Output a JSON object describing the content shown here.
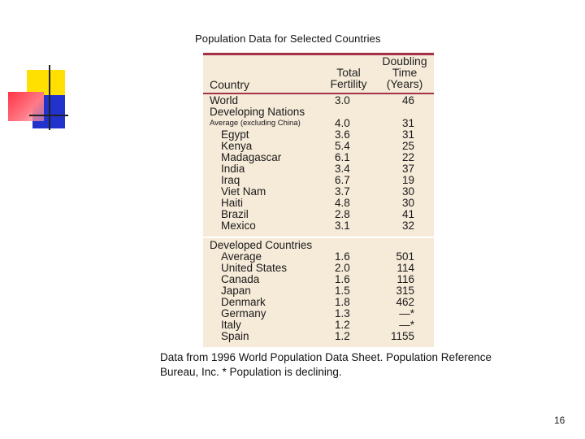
{
  "title": "Population Data for Selected Countries",
  "headers": {
    "country": "Country",
    "fertility": [
      "Total",
      "Fertility"
    ],
    "doubling": [
      "Doubling",
      "Time",
      "(Years)"
    ]
  },
  "rows": [
    {
      "name": "World",
      "fertility": "3.0",
      "doubling": "46",
      "indent": 0
    },
    {
      "name": "Developing Nations",
      "fertility": "",
      "doubling": "",
      "indent": 0
    },
    {
      "name": "Average  (excluding China)",
      "fertility": "4.0",
      "doubling": "31",
      "indent": 0,
      "note": true
    },
    {
      "name": "Egypt",
      "fertility": "3.6",
      "doubling": "31",
      "indent": 1
    },
    {
      "name": "Kenya",
      "fertility": "5.4",
      "doubling": "25",
      "indent": 1
    },
    {
      "name": "Madagascar",
      "fertility": "6.1",
      "doubling": "22",
      "indent": 1
    },
    {
      "name": "India",
      "fertility": "3.4",
      "doubling": "37",
      "indent": 1
    },
    {
      "name": "Iraq",
      "fertility": "6.7",
      "doubling": "19",
      "indent": 1
    },
    {
      "name": "Viet Nam",
      "fertility": "3.7",
      "doubling": "30",
      "indent": 1
    },
    {
      "name": "Haiti",
      "fertility": "4.8",
      "doubling": "30",
      "indent": 1
    },
    {
      "name": "Brazil",
      "fertility": "2.8",
      "doubling": "41",
      "indent": 1
    },
    {
      "name": "Mexico",
      "fertility": "3.1",
      "doubling": "32",
      "indent": 1
    },
    {
      "name": "Developed Countries",
      "fertility": "",
      "doubling": "",
      "indent": 0
    },
    {
      "name": "Average",
      "fertility": "1.6",
      "doubling": "501",
      "indent": 1
    },
    {
      "name": "United States",
      "fertility": "2.0",
      "doubling": "114",
      "indent": 1
    },
    {
      "name": "Canada",
      "fertility": "1.6",
      "doubling": "116",
      "indent": 1
    },
    {
      "name": "Japan",
      "fertility": "1.5",
      "doubling": "315",
      "indent": 1
    },
    {
      "name": "Denmark",
      "fertility": "1.8",
      "doubling": "462",
      "indent": 1
    },
    {
      "name": "Germany",
      "fertility": "1.3",
      "doubling": "—*",
      "indent": 1
    },
    {
      "name": "Italy",
      "fertility": "1.2",
      "doubling": "—*",
      "indent": 1
    },
    {
      "name": "Spain",
      "fertility": "1.2",
      "doubling": "1155",
      "indent": 1
    }
  ],
  "caption": "Data from 1996 World Population Data Sheet. Population Reference Bureau, Inc. * Population is declining.",
  "page_number": "16",
  "colors": {
    "rule": "#a4324a",
    "panel": "#f6ead8",
    "logo_yellow": "#ffe000",
    "logo_blue": "#2233cc",
    "logo_red": "#ff3344"
  }
}
